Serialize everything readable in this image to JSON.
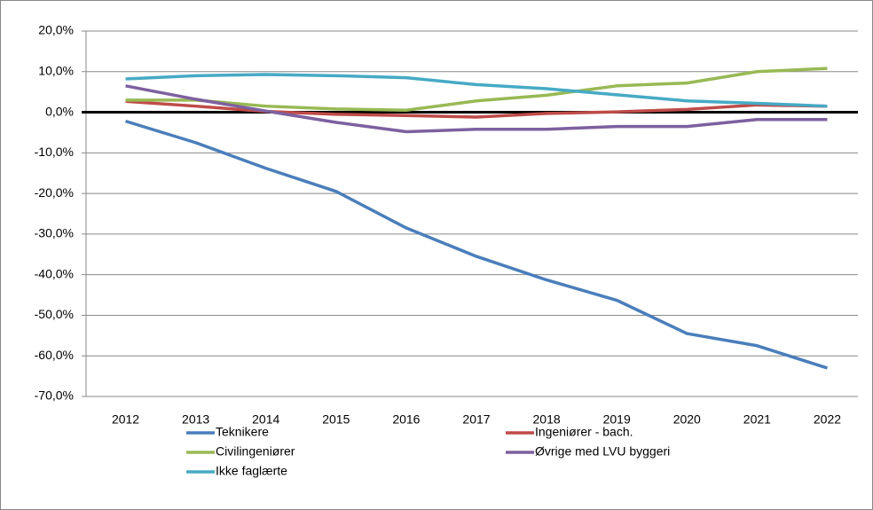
{
  "chart_data": {
    "type": "line",
    "categories": [
      "2012",
      "2013",
      "2014",
      "2015",
      "2016",
      "2017",
      "2018",
      "2019",
      "2020",
      "2021",
      "2022"
    ],
    "series": [
      {
        "name": "Teknikere",
        "color": "#4a7ebb",
        "values": [
          -2.2,
          -7.5,
          -13.8,
          -19.5,
          -28.5,
          -35.5,
          -41.3,
          -46.3,
          -54.5,
          -57.5,
          -63.0
        ]
      },
      {
        "name": "Ingeniører - bach.",
        "color": "#be4b48",
        "values": [
          2.7,
          1.5,
          0.2,
          -0.5,
          -0.8,
          -1.2,
          -0.3,
          0.1,
          0.7,
          1.8,
          1.5
        ]
      },
      {
        "name": "Civilingeniører",
        "color": "#98b954",
        "values": [
          3.0,
          3.0,
          1.5,
          0.8,
          0.5,
          2.8,
          4.2,
          6.5,
          7.2,
          10.0,
          10.8
        ]
      },
      {
        "name": "Øvrige med LVU byggeri",
        "color": "#7d60a0",
        "values": [
          6.5,
          3.2,
          0.3,
          -2.5,
          -4.8,
          -4.2,
          -4.2,
          -3.5,
          -3.5,
          -1.8,
          -1.8
        ]
      },
      {
        "name": "Ikke faglærte",
        "color": "#46aac5",
        "values": [
          8.2,
          9.0,
          9.3,
          9.0,
          8.5,
          6.8,
          5.8,
          4.3,
          2.8,
          2.2,
          1.5
        ]
      }
    ],
    "ylim": [
      -70,
      20
    ],
    "yticks": [
      {
        "value": 20,
        "label": "20,0%"
      },
      {
        "value": 10,
        "label": "10,0%"
      },
      {
        "value": 0,
        "label": "0,0%"
      },
      {
        "value": -10,
        "label": "-10,0%"
      },
      {
        "value": -20,
        "label": "-20,0%"
      },
      {
        "value": -30,
        "label": "-30,0%"
      },
      {
        "value": -40,
        "label": "-40,0%"
      },
      {
        "value": -50,
        "label": "-50,0%"
      },
      {
        "value": -60,
        "label": "-60,0%"
      },
      {
        "value": -70,
        "label": "-70,0%"
      }
    ],
    "grid": true,
    "legend": "bottom"
  }
}
